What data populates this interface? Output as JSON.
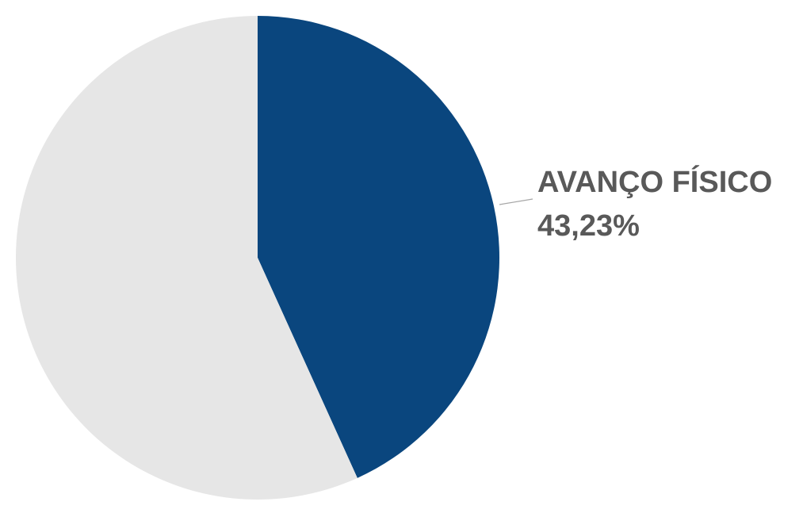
{
  "chart_data": {
    "type": "pie",
    "slices": [
      {
        "category": "AVANÇO FÍSICO",
        "value_label": "43,23%",
        "value": 43.23,
        "color": "#0a467e",
        "labeled": true
      },
      {
        "category": "",
        "value_label": "",
        "value": 56.77,
        "color": "#e6e6e6",
        "labeled": false
      }
    ],
    "leader_line_color": "#a6a6a6",
    "label_color": "#595959"
  }
}
